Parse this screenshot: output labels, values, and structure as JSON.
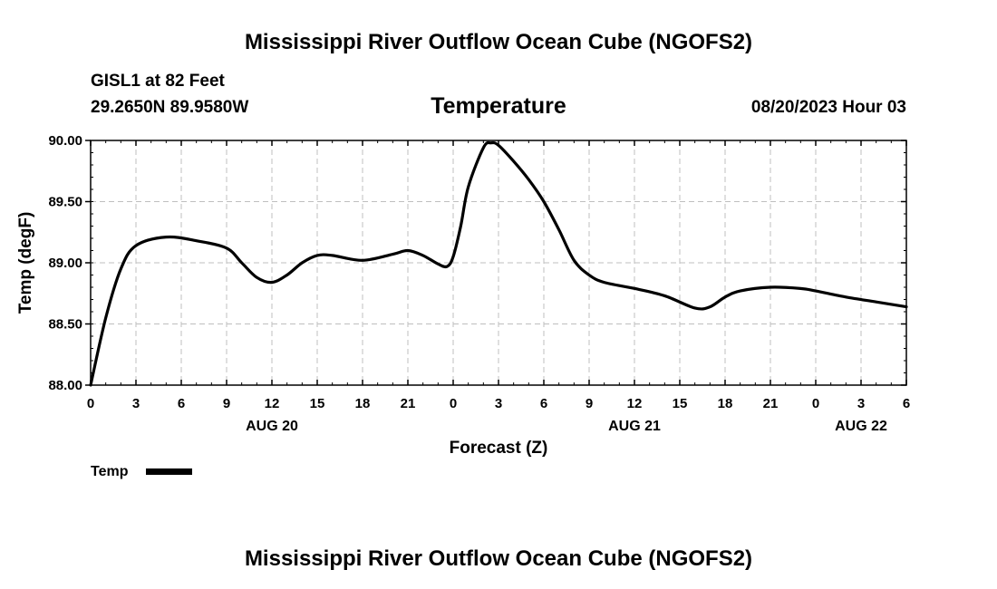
{
  "header": {
    "main_title": "Mississippi River Outflow Ocean Cube (NGOFS2)",
    "station": "GISL1 at 82 Feet",
    "coords": "29.2650N  89.9580W",
    "variable": "Temperature",
    "datetime": "08/20/2023 Hour 03"
  },
  "footer": {
    "title": "Mississippi River Outflow Ocean Cube (NGOFS2)"
  },
  "chart_data": {
    "type": "line",
    "title": "Temperature",
    "xlabel": "Forecast (Z)",
    "ylabel": "Temp (degF)",
    "ylim": [
      88.0,
      90.0
    ],
    "xlim": [
      0,
      54
    ],
    "grid": true,
    "legend_position": "bottom-left",
    "yticks": [
      88.0,
      88.5,
      89.0,
      89.5,
      90.0
    ],
    "ytick_labels": [
      "88.00",
      "88.50",
      "89.00",
      "89.50",
      "90.00"
    ],
    "xticks": [
      0,
      3,
      6,
      9,
      12,
      15,
      18,
      21,
      24,
      27,
      30,
      33,
      36,
      39,
      42,
      45,
      48,
      51,
      54
    ],
    "xtick_labels": [
      "0",
      "3",
      "6",
      "9",
      "12",
      "15",
      "18",
      "21",
      "0",
      "3",
      "6",
      "9",
      "12",
      "15",
      "18",
      "21",
      "0",
      "3",
      "6"
    ],
    "date_labels": [
      {
        "x": 12,
        "label": "AUG 20"
      },
      {
        "x": 36,
        "label": "AUG 21"
      },
      {
        "x": 51,
        "label": "AUG 22"
      }
    ],
    "series": [
      {
        "name": "Temp",
        "color": "#000000",
        "x": [
          0,
          1,
          2,
          3,
          5,
          7,
          9,
          10,
          11,
          12,
          13,
          14,
          15,
          16,
          18,
          20,
          21,
          22,
          23,
          23.6,
          24,
          24.5,
          25,
          26,
          26.5,
          27,
          28,
          29,
          30,
          31,
          32,
          33,
          34,
          36,
          38,
          40,
          41,
          42,
          43,
          45,
          47,
          48,
          50,
          52,
          54
        ],
        "values": [
          88.0,
          88.55,
          88.95,
          89.14,
          89.21,
          89.18,
          89.12,
          89.0,
          88.88,
          88.84,
          88.9,
          89.0,
          89.06,
          89.06,
          89.02,
          89.07,
          89.1,
          89.06,
          88.99,
          88.97,
          89.05,
          89.3,
          89.62,
          89.94,
          89.98,
          89.96,
          89.83,
          89.68,
          89.5,
          89.27,
          89.02,
          88.9,
          88.84,
          88.79,
          88.73,
          88.63,
          88.64,
          88.72,
          88.77,
          88.8,
          88.79,
          88.77,
          88.72,
          88.68,
          88.64
        ]
      }
    ]
  }
}
